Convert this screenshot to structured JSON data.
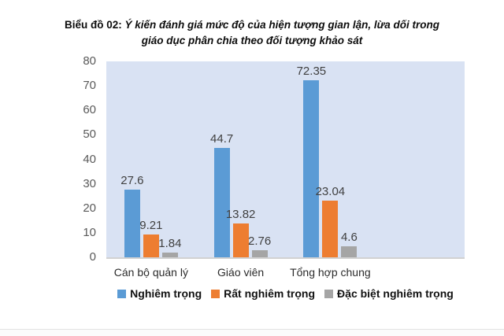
{
  "title": {
    "prefix": "Biểu đồ 02: ",
    "line1": "Ý kiến đánh giá mức độ của hiện tượng gian lận, lừa dối trong",
    "line2": "giáo dục phân chia theo đối tượng khảo sát"
  },
  "chart_data": {
    "type": "bar",
    "title": "Biểu đồ 02: Ý kiến đánh giá mức độ của hiện tượng gian lận, lừa dối trong giáo dục phân chia theo đối tượng khảo sát",
    "categories": [
      "Cán bộ quản lý",
      "Giáo viên",
      "Tổng hợp chung"
    ],
    "series": [
      {
        "name": "Nghiêm trọng",
        "color": "#5b9bd5",
        "values": [
          27.6,
          44.7,
          72.35
        ]
      },
      {
        "name": "Rất nghiêm trọng",
        "color": "#ed7d31",
        "values": [
          9.21,
          13.82,
          23.04
        ]
      },
      {
        "name": "Đặc biệt nghiêm trọng",
        "color": "#a5a5a5",
        "values": [
          1.84,
          2.76,
          4.6
        ]
      }
    ],
    "xlabel": "",
    "ylabel": "",
    "ylim": [
      0,
      80
    ],
    "yticks": [
      0,
      10,
      20,
      30,
      40,
      50,
      60,
      70,
      80
    ],
    "grid": false,
    "data_labels": true,
    "legend_position": "bottom",
    "plot_background": "#d9e2f3",
    "axis_line_color": "#d2d2d2",
    "category_slots": 4
  }
}
